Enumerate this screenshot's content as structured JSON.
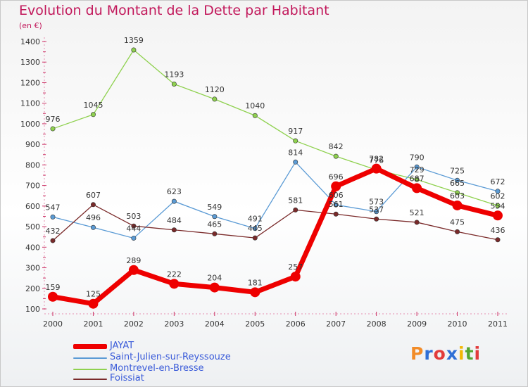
{
  "title": "Evolution du Montant de la Dette par Habitant",
  "subtitle": "(en €)",
  "logo": {
    "text": "Proxiti",
    "colors": [
      "#f28c28",
      "#2f6fd6",
      "#e23b3b",
      "#2f6fd6",
      "#f2b705",
      "#55a630",
      "#e23b3b"
    ]
  },
  "chart_data": {
    "type": "line",
    "title": "Evolution du Montant de la Dette par Habitant",
    "subtitle": "(en €)",
    "xlabel": "",
    "ylabel": "",
    "x": [
      "2000",
      "2001",
      "2002",
      "2003",
      "2004",
      "2005",
      "2006",
      "2007",
      "2008",
      "2009",
      "2010",
      "2011"
    ],
    "ylim": [
      100,
      1400
    ],
    "yticks": [
      100,
      200,
      300,
      400,
      500,
      600,
      700,
      800,
      900,
      1000,
      1100,
      1200,
      1300,
      1400
    ],
    "grid": false,
    "legend_position": "bottom-left",
    "series": [
      {
        "name": "JAYAT",
        "color": "#ee0000",
        "width": 7,
        "values": [
          159,
          125,
          289,
          222,
          204,
          181,
          257,
          696,
          782,
          687,
          603,
          554
        ],
        "labels": [
          "159",
          "125",
          "289",
          "222",
          "204",
          "181",
          "257",
          "696",
          "782",
          "687",
          "603",
          "554"
        ]
      },
      {
        "name": "Saint-Julien-sur-Reyssouze",
        "color": "#5b9bd5",
        "width": 1.3,
        "values": [
          547,
          496,
          444,
          623,
          549,
          491,
          814,
          606,
          573,
          790,
          725,
          672
        ],
        "labels": [
          "547",
          "496",
          "444",
          "623",
          "549",
          "491",
          "814",
          "606",
          "573",
          "790",
          "725",
          "672"
        ]
      },
      {
        "name": "Montrevel-en-Bresse",
        "color": "#8fd14f",
        "width": 1.3,
        "values": [
          976,
          1045,
          1359,
          1193,
          1120,
          1040,
          917,
          842,
          776,
          729,
          665,
          602
        ],
        "labels": [
          "976",
          "1045",
          "1359",
          "1193",
          "1120",
          "1040",
          "917",
          "842",
          "776",
          "729",
          "665",
          "602"
        ]
      },
      {
        "name": "Foissiat",
        "color": "#7a2a2a",
        "width": 1.3,
        "values": [
          432,
          607,
          503,
          484,
          465,
          445,
          581,
          561,
          537,
          521,
          475,
          436
        ],
        "labels": [
          "432",
          "607",
          "503",
          "484",
          "465",
          "445",
          "581",
          "561",
          "537",
          "521",
          "475",
          "436"
        ]
      }
    ]
  }
}
